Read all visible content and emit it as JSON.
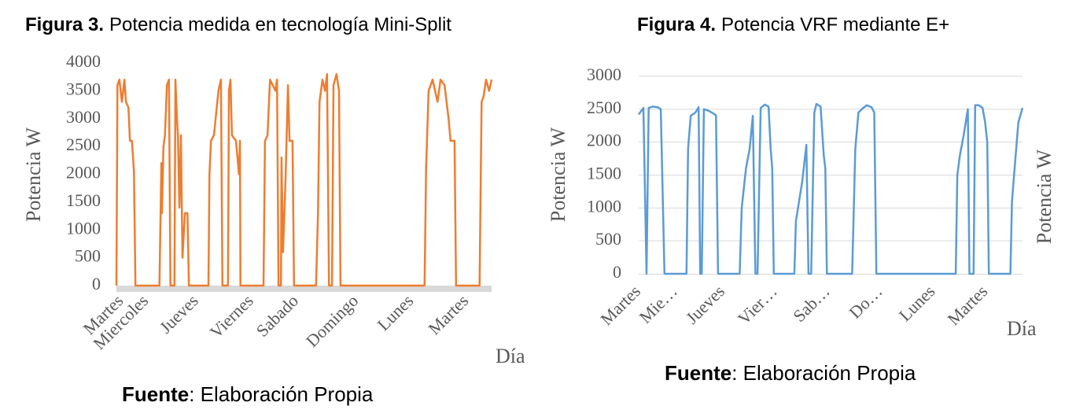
{
  "chart_data": [
    {
      "type": "line",
      "title_prefix": "Figura 3.",
      "title": "Potencia medida en tecnología Mini-Split",
      "ylabel": "Potencia  W",
      "xlabel": "Día",
      "source_prefix": "Fuente",
      "source": ": Elaboración Propia",
      "color": "#ed7d31",
      "grid": false,
      "ylim": [
        0,
        4000
      ],
      "yticks": [
        0,
        500,
        1000,
        1500,
        2000,
        2500,
        3000,
        3500,
        4000
      ],
      "xlim": [
        0,
        7.5
      ],
      "xticks": [
        {
          "value": 0.1,
          "label": "Martes"
        },
        {
          "value": 0.6,
          "label": "Miercoles"
        },
        {
          "value": 1.6,
          "label": "Jueves"
        },
        {
          "value": 2.7,
          "label": "Viernes"
        },
        {
          "value": 3.6,
          "label": "Sabado"
        },
        {
          "value": 4.8,
          "label": "Domingo"
        },
        {
          "value": 5.9,
          "label": "Lunes"
        },
        {
          "value": 7.0,
          "label": "Martes"
        }
      ],
      "x": [
        0,
        0.02,
        0.06,
        0.11,
        0.16,
        0.19,
        0.24,
        0.27,
        0.31,
        0.35,
        0.38,
        0.86,
        0.9,
        0.91,
        0.94,
        0.97,
        1.01,
        1.05,
        1.08,
        1.16,
        1.18,
        1.21,
        1.23,
        1.26,
        1.29,
        1.32,
        1.37,
        1.42,
        1.45,
        1.84,
        1.86,
        1.89,
        1.95,
        2.04,
        2.09,
        2.12,
        2.23,
        2.25,
        2.28,
        2.31,
        2.39,
        2.45,
        2.47,
        2.48,
        2.94,
        2.97,
        3.02,
        3.07,
        3.18,
        3.21,
        3.24,
        3.29,
        3.3,
        3.33,
        3.38,
        3.43,
        3.46,
        3.52,
        3.55,
        3.99,
        4.03,
        4.06,
        4.12,
        4.17,
        4.21,
        4.25,
        4.31,
        4.34,
        4.4,
        4.45,
        4.48,
        6.16,
        6.19,
        6.24,
        6.32,
        6.42,
        6.48,
        6.56,
        6.64,
        6.68,
        6.76,
        6.79,
        7.26,
        7.3,
        7.34,
        7.39,
        7.45,
        7.5
      ],
      "values": [
        0,
        3600,
        3700,
        3300,
        3700,
        3300,
        3200,
        2600,
        2600,
        2050,
        0,
        0,
        2200,
        1300,
        2500,
        2700,
        3600,
        3700,
        0,
        0,
        3700,
        3000,
        2700,
        1400,
        2700,
        500,
        1300,
        1300,
        0,
        0,
        2000,
        2600,
        2700,
        3500,
        3700,
        0,
        0,
        3500,
        3700,
        2700,
        2600,
        2000,
        2600,
        0,
        0,
        2600,
        2700,
        3700,
        3500,
        3700,
        0,
        0,
        2300,
        600,
        1900,
        3600,
        2600,
        2600,
        0,
        0,
        1300,
        3300,
        3700,
        3500,
        3800,
        0,
        0,
        3600,
        3800,
        3500,
        0,
        0,
        2100,
        3500,
        3700,
        3300,
        3700,
        3600,
        3000,
        2600,
        2600,
        0,
        0,
        3300,
        3400,
        3700,
        3500,
        3700
      ]
    },
    {
      "type": "line",
      "title_prefix": "Figura 4.",
      "title": "Potencia VRF mediante E+",
      "ylabel": "Potencia W",
      "y2label": "Potencia W",
      "xlabel": "Día",
      "source_prefix": "Fuente",
      "source": ": Elaboración Propia",
      "color": "#5b9bd5",
      "grid": true,
      "ylim": [
        0,
        3000
      ],
      "yticks": [
        0,
        500,
        1000,
        1500,
        2000,
        2500,
        3000
      ],
      "xlim": [
        0,
        7.3
      ],
      "xticks": [
        {
          "value": 0,
          "label": "Martes"
        },
        {
          "value": 0.7,
          "label": "Mie…"
        },
        {
          "value": 1.6,
          "label": "Jueves"
        },
        {
          "value": 2.6,
          "label": "Vier…"
        },
        {
          "value": 3.6,
          "label": "Sab…"
        },
        {
          "value": 4.6,
          "label": "Do…"
        },
        {
          "value": 5.6,
          "label": "Lunes"
        },
        {
          "value": 6.6,
          "label": "Martes"
        }
      ],
      "x": [
        0,
        0.09,
        0.15,
        0.19,
        0.27,
        0.36,
        0.42,
        0.49,
        0.91,
        0.94,
        0.99,
        1.08,
        1.14,
        1.17,
        1.2,
        1.24,
        1.32,
        1.39,
        1.47,
        1.51,
        1.92,
        1.96,
        2.04,
        2.11,
        2.17,
        2.22,
        2.26,
        2.32,
        2.4,
        2.47,
        2.51,
        2.54,
        2.57,
        2.96,
        2.99,
        3.05,
        3.11,
        3.19,
        3.23,
        3.28,
        3.34,
        3.38,
        3.46,
        3.52,
        3.55,
        3.58,
        4.06,
        4.12,
        4.18,
        4.27,
        4.34,
        4.43,
        4.48,
        4.52,
        6.03,
        6.06,
        6.11,
        6.18,
        6.26,
        6.29,
        6.37,
        6.4,
        6.47,
        6.54,
        6.59,
        6.63,
        6.66,
        7.07,
        7.1,
        7.16,
        7.22,
        7.3
      ],
      "values": [
        2420,
        2520,
        0,
        2520,
        2540,
        2530,
        2500,
        0,
        0,
        1900,
        2400,
        2450,
        2530,
        0,
        0,
        2500,
        2480,
        2450,
        2410,
        0,
        0,
        1000,
        1600,
        1900,
        2400,
        0,
        0,
        2520,
        2570,
        2540,
        1900,
        1600,
        0,
        0,
        800,
        1100,
        1400,
        1960,
        0,
        0,
        2450,
        2580,
        2540,
        1800,
        1600,
        0,
        0,
        1900,
        2450,
        2520,
        2560,
        2530,
        2450,
        0,
        0,
        1500,
        1800,
        2100,
        2500,
        0,
        0,
        2560,
        2560,
        2520,
        2300,
        2000,
        0,
        0,
        1100,
        1700,
        2300,
        2520
      ]
    }
  ]
}
